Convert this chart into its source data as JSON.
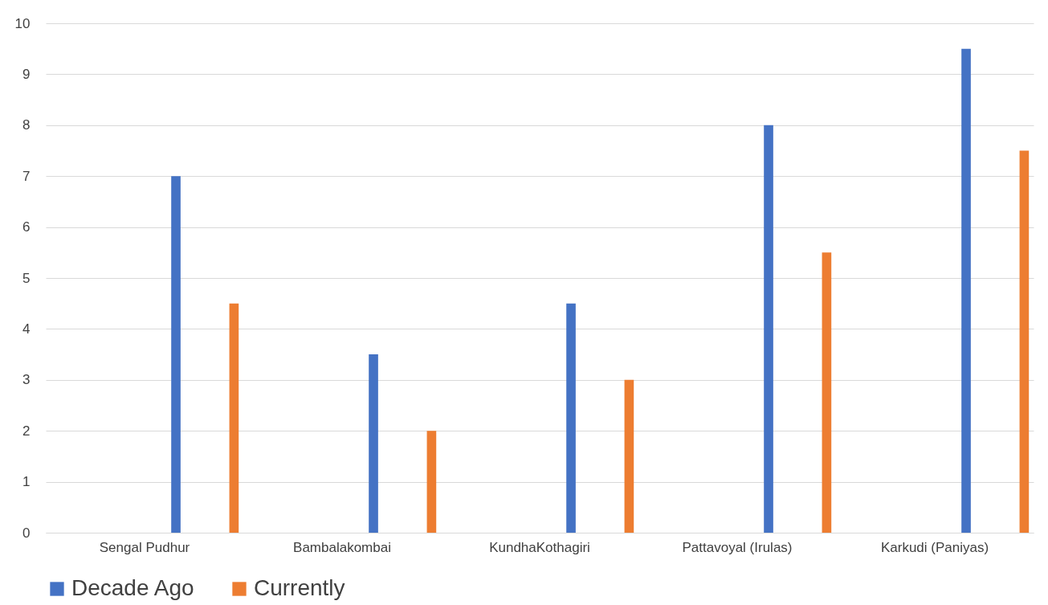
{
  "chart_data": {
    "type": "bar",
    "categories": [
      "Sengal Pudhur",
      "Bambalakombai",
      "KundhaKothagiri",
      "Pattavoyal (Irulas)",
      "Karkudi (Paniyas)"
    ],
    "series": [
      {
        "name": "Decade Ago",
        "color": "#4472c4",
        "values": [
          7,
          3.5,
          4.5,
          8,
          9.5
        ]
      },
      {
        "name": "Currently",
        "color": "#ed7d31",
        "values": [
          4.5,
          2,
          3,
          5.5,
          7.5
        ]
      }
    ],
    "ylim": [
      0,
      10
    ],
    "yticks": [
      0,
      1,
      2,
      3,
      4,
      5,
      6,
      7,
      8,
      9,
      10
    ],
    "grid": "y",
    "legend": "bottom"
  }
}
